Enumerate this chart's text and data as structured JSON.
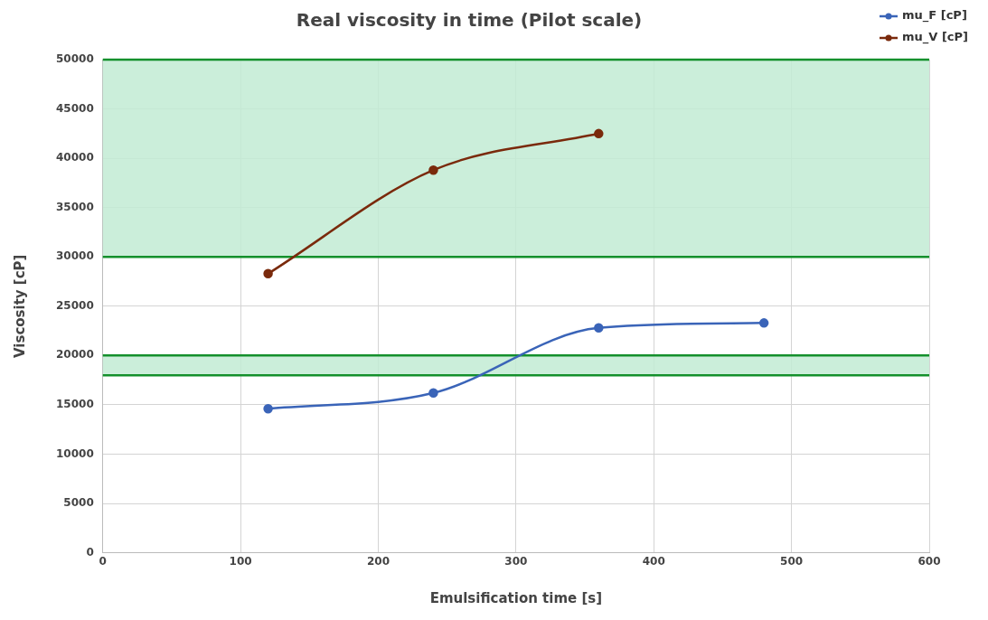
{
  "chart_data": {
    "type": "line",
    "title": "Real viscosity in time (Pilot scale)",
    "xlabel": "Emulsification time [s]",
    "ylabel": "Viscosity [cP]",
    "x": [
      120,
      240,
      360,
      480
    ],
    "series": [
      {
        "name": "mu_F [cP]",
        "color": "#3a64b8",
        "values": [
          14600,
          16200,
          22800,
          23300
        ]
      },
      {
        "name": "mu_V [cP]",
        "color": "#7a2a0c",
        "values": [
          28300,
          38800,
          42500,
          null
        ]
      }
    ],
    "xlim": [
      0,
      600
    ],
    "xticks": [
      0,
      100,
      200,
      300,
      400,
      500,
      600
    ],
    "ylim": [
      0,
      50000
    ],
    "yticks": [
      0,
      5000,
      10000,
      15000,
      20000,
      25000,
      30000,
      35000,
      40000,
      45000,
      50000
    ],
    "bands": [
      {
        "axis": "y",
        "from": 30000,
        "to": 50000,
        "color": "#c2ebd4"
      },
      {
        "axis": "y",
        "from": 18000,
        "to": 20000,
        "color": "#c2ebd4"
      }
    ],
    "grid": true,
    "legend": "top right",
    "marker": "circle",
    "line_style": "solid"
  }
}
